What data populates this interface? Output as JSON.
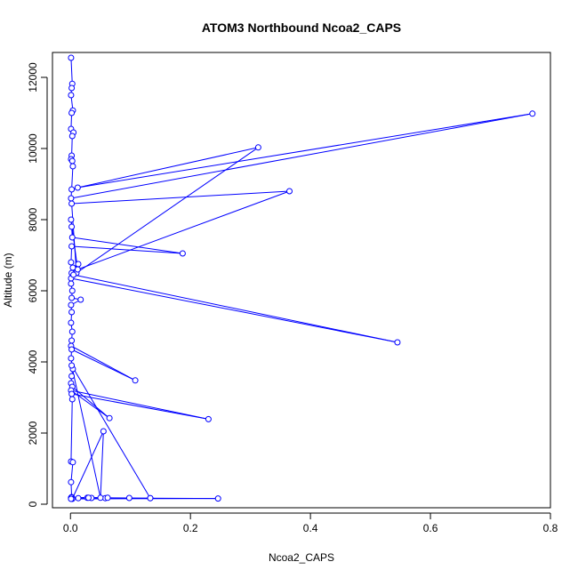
{
  "chart_data": {
    "type": "line",
    "title": "ATOM3 Northbound Ncoa2_CAPS",
    "xlabel": "Ncoa2_CAPS",
    "ylabel": "Altitude (m)",
    "xlim": [
      -0.03,
      0.8
    ],
    "ylim": [
      -100,
      12700
    ],
    "x_ticks": [
      0.0,
      0.2,
      0.4,
      0.6,
      0.8
    ],
    "x_tick_labels": [
      "0.0",
      "0.2",
      "0.4",
      "0.6",
      "0.8"
    ],
    "y_ticks": [
      0,
      2000,
      4000,
      6000,
      8000,
      10000,
      12000
    ],
    "y_tick_labels": [
      "0",
      "2000",
      "4000",
      "6000",
      "8000",
      "10000",
      "12000"
    ],
    "grid": false,
    "legend": "none",
    "series_color": "#0000ff",
    "marker": "open-circle",
    "series": [
      {
        "x": [
          0.001,
          0.003,
          0.002,
          0.001,
          0.004,
          0.002,
          0.001,
          0.005,
          0.003,
          0.002,
          0.001,
          0.003,
          0.004,
          0.002,
          0.001,
          0.77,
          0.012,
          0.313,
          0.01,
          0.002,
          0.365,
          0.012,
          0.001,
          0.002,
          0.003,
          0.187,
          0.002,
          0.001,
          0.004,
          0.013,
          0.002,
          0.001,
          0.545,
          0.005,
          0.001,
          0.003,
          0.002,
          0.017,
          0.001,
          0.002,
          0.001,
          0.003,
          0.002,
          0.001,
          0.108,
          0.002,
          0.001,
          0.004,
          0.002,
          0.001,
          0.003,
          0.065,
          0.001,
          0.23,
          0.002,
          0.003,
          0.001,
          0.004,
          0.001,
          0.002,
          0.001,
          0.003,
          0.001,
          0.001,
          0.013,
          0.028,
          0.035,
          0.03,
          0.058,
          0.062,
          0.002,
          0.098,
          0.133,
          0.002,
          0.05,
          0.055,
          0.003,
          0.246,
          0.133,
          0.001
        ],
        "y": [
          12550,
          11820,
          11700,
          11500,
          11070,
          11000,
          10550,
          10450,
          10350,
          9800,
          9700,
          9650,
          9500,
          8850,
          8600,
          10980,
          8900,
          10030,
          6500,
          8450,
          8800,
          6600,
          8000,
          7800,
          7500,
          7050,
          7250,
          6800,
          6650,
          6750,
          6500,
          6350,
          4550,
          6450,
          6200,
          6000,
          5800,
          5750,
          5600,
          5400,
          5100,
          4850,
          4600,
          4450,
          3480,
          4350,
          4100,
          3800,
          3600,
          3400,
          3300,
          2420,
          3200,
          2390,
          3100,
          2950,
          1200,
          1180,
          620,
          200,
          180,
          170,
          180,
          160,
          170,
          180,
          175,
          180,
          170,
          180,
          190,
          175,
          170,
          3900,
          180,
          2050,
          150,
          160,
          170,
          150
        ]
      }
    ]
  }
}
